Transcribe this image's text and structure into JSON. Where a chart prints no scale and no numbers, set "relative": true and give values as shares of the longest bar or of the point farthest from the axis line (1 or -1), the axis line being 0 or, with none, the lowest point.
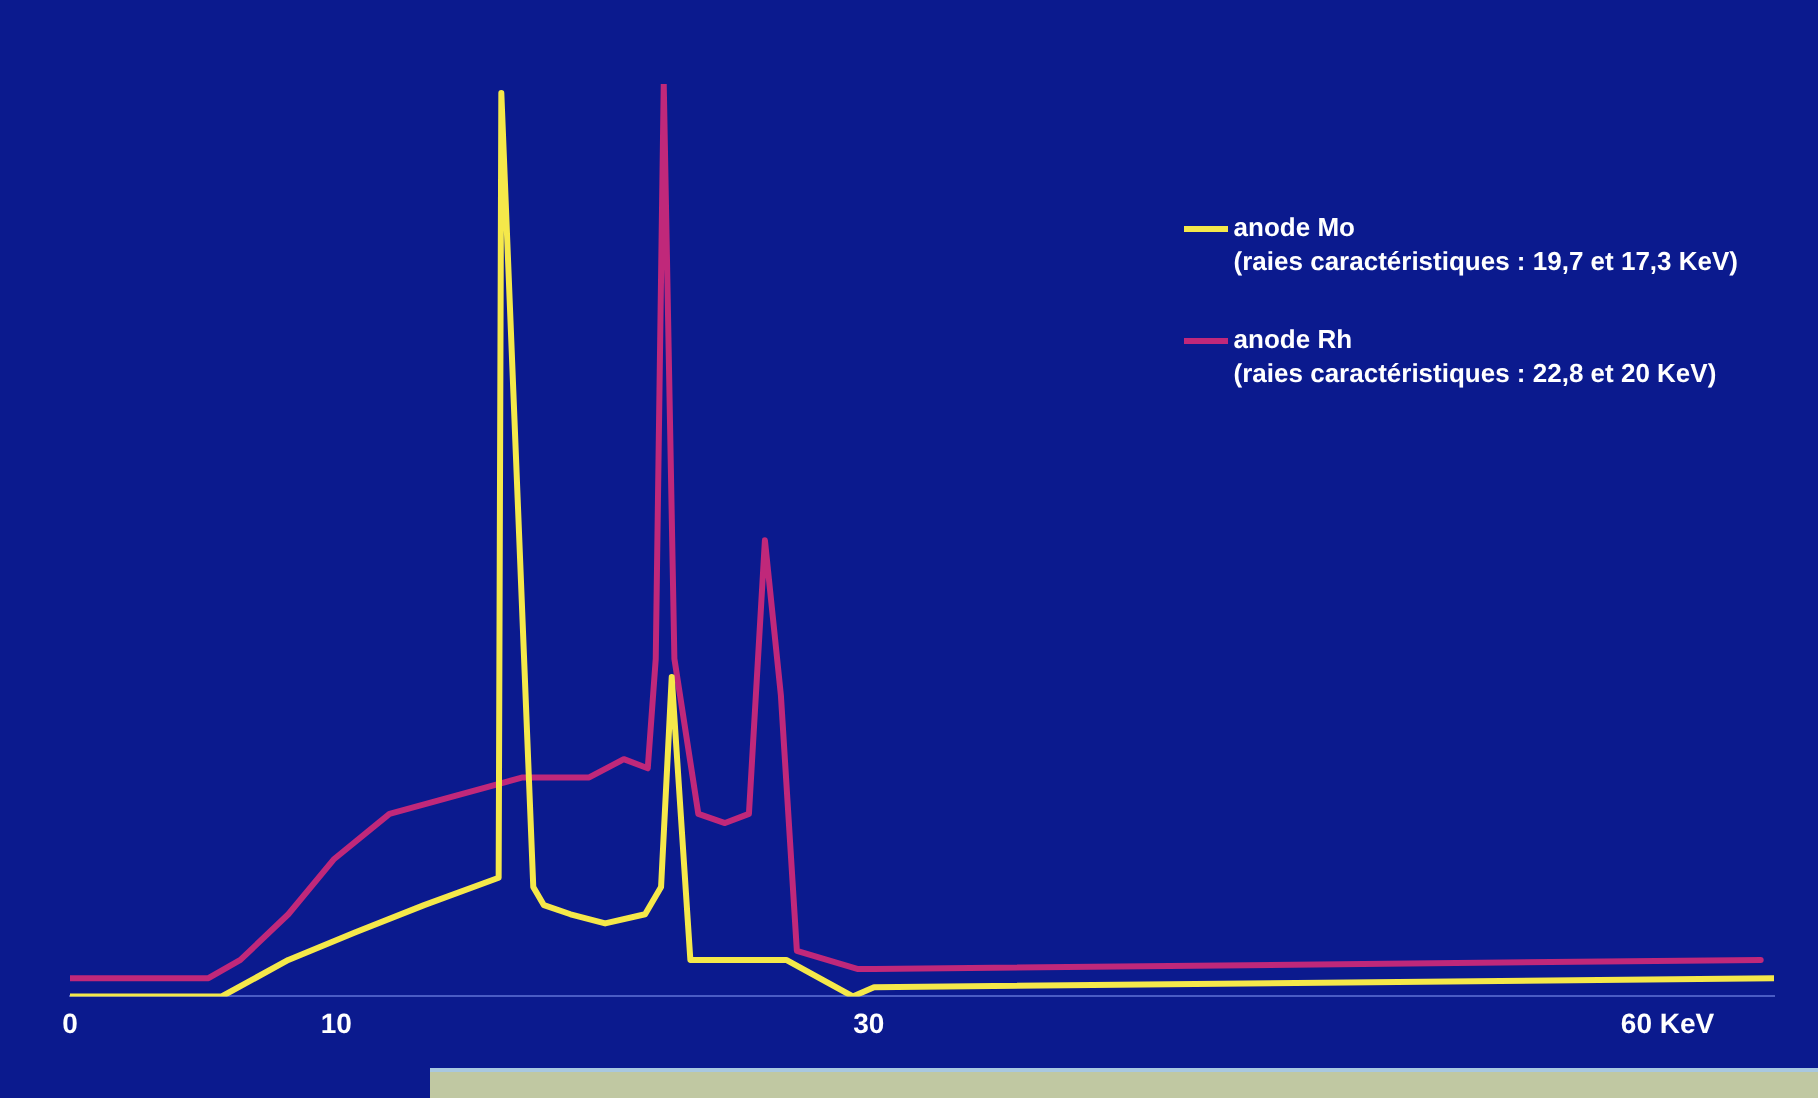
{
  "chart_data": {
    "type": "line",
    "relative": true,
    "legend": "top right",
    "grid": false,
    "marker": "none",
    "line_style": "solid",
    "xlim": [
      0,
      64
    ],
    "xticks": [
      0,
      10,
      30,
      {
        "value": 60,
        "label": "60 KeV"
      }
    ],
    "series": [
      {
        "name": "anode Mo\n(raies caractéristiques : 19,7 et 17,3 KeV)",
        "color": "#f5e84a",
        "x": [
          0,
          5.7,
          8.2,
          10.7,
          13.3,
          16.1,
          16.2,
          17.4,
          17.8,
          18.8,
          20.1,
          21.6,
          22.2,
          22.6,
          23.3,
          26.9,
          29.4,
          30.2,
          64.0
        ],
        "values": [
          0,
          0,
          0.04,
          0.07,
          0.1,
          0.13,
          0.99,
          0.12,
          0.1,
          0.09,
          0.08,
          0.09,
          0.12,
          0.35,
          0.04,
          0.04,
          0,
          0.01,
          0.02
        ]
      },
      {
        "name": "anode Rh\n(raies caractéristiques : 22,8 et 20 KeV)",
        "color": "#c0287a",
        "x": [
          0,
          5.2,
          6.4,
          8.2,
          9.9,
          12.0,
          14.5,
          17.0,
          19.5,
          20.8,
          21.7,
          22.0,
          22.3,
          22.7,
          23.6,
          24.6,
          25.5,
          26.1,
          26.7,
          27.3,
          29.6,
          30.2,
          63.5
        ],
        "values": [
          0.02,
          0.02,
          0.04,
          0.09,
          0.15,
          0.2,
          0.22,
          0.24,
          0.24,
          0.26,
          0.25,
          0.37,
          1.0,
          0.37,
          0.2,
          0.19,
          0.2,
          0.5,
          0.33,
          0.05,
          0.03,
          0.03,
          0.04
        ]
      }
    ]
  }
}
